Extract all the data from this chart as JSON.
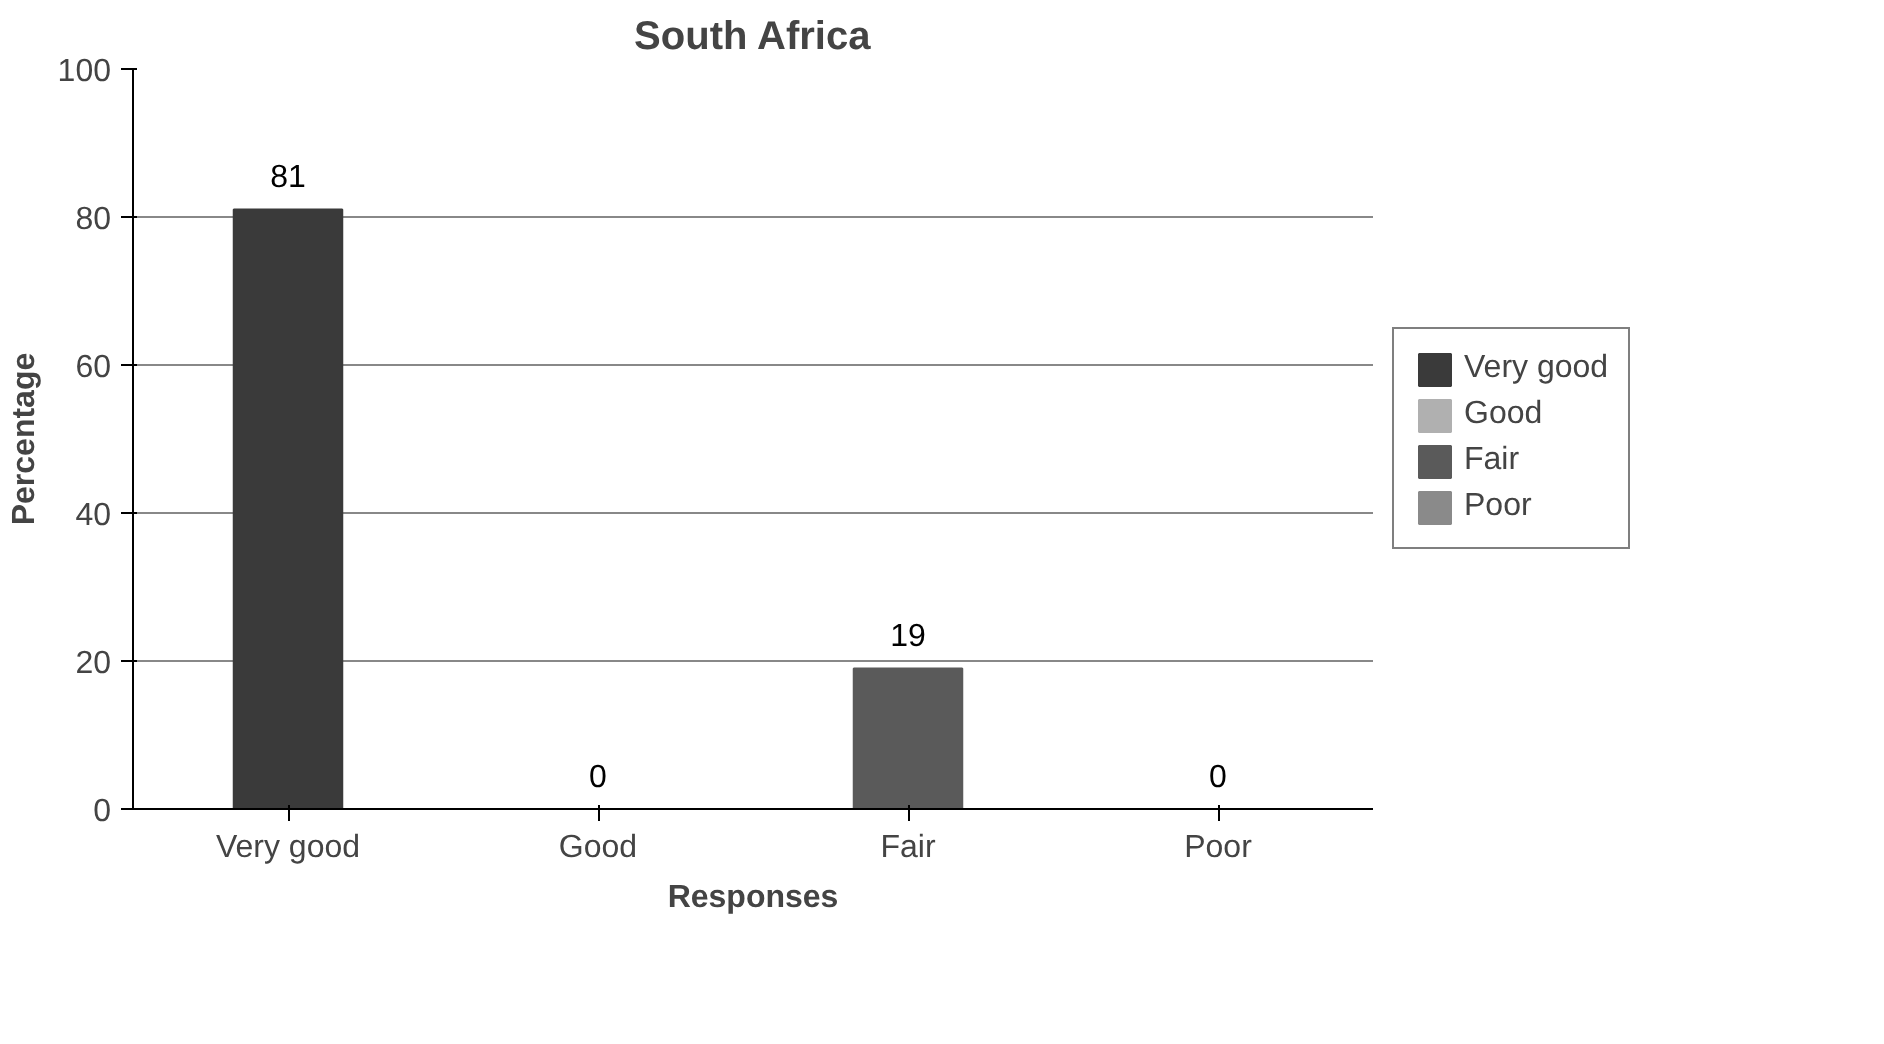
{
  "chart_data": {
    "type": "bar",
    "title": "South Africa",
    "xlabel": "Responses",
    "ylabel": "Percentage",
    "categories": [
      "Very good",
      "Good",
      "Fair",
      "Poor"
    ],
    "series": [
      {
        "name": "Very good",
        "color": "#3a3a3a",
        "values": [
          81,
          null,
          null,
          null
        ]
      },
      {
        "name": "Good",
        "color": "#b0b0b0",
        "values": [
          null,
          0,
          null,
          null
        ]
      },
      {
        "name": "Fair",
        "color": "#5a5a5a",
        "values": [
          null,
          null,
          19,
          null
        ]
      },
      {
        "name": "Poor",
        "color": "#8a8a8a",
        "values": [
          null,
          null,
          null,
          0
        ]
      }
    ],
    "ylim": [
      0,
      100
    ],
    "yticks": [
      0,
      20,
      40,
      60,
      80,
      100
    ],
    "grid": "y",
    "legend": "right",
    "data_labels": true
  }
}
